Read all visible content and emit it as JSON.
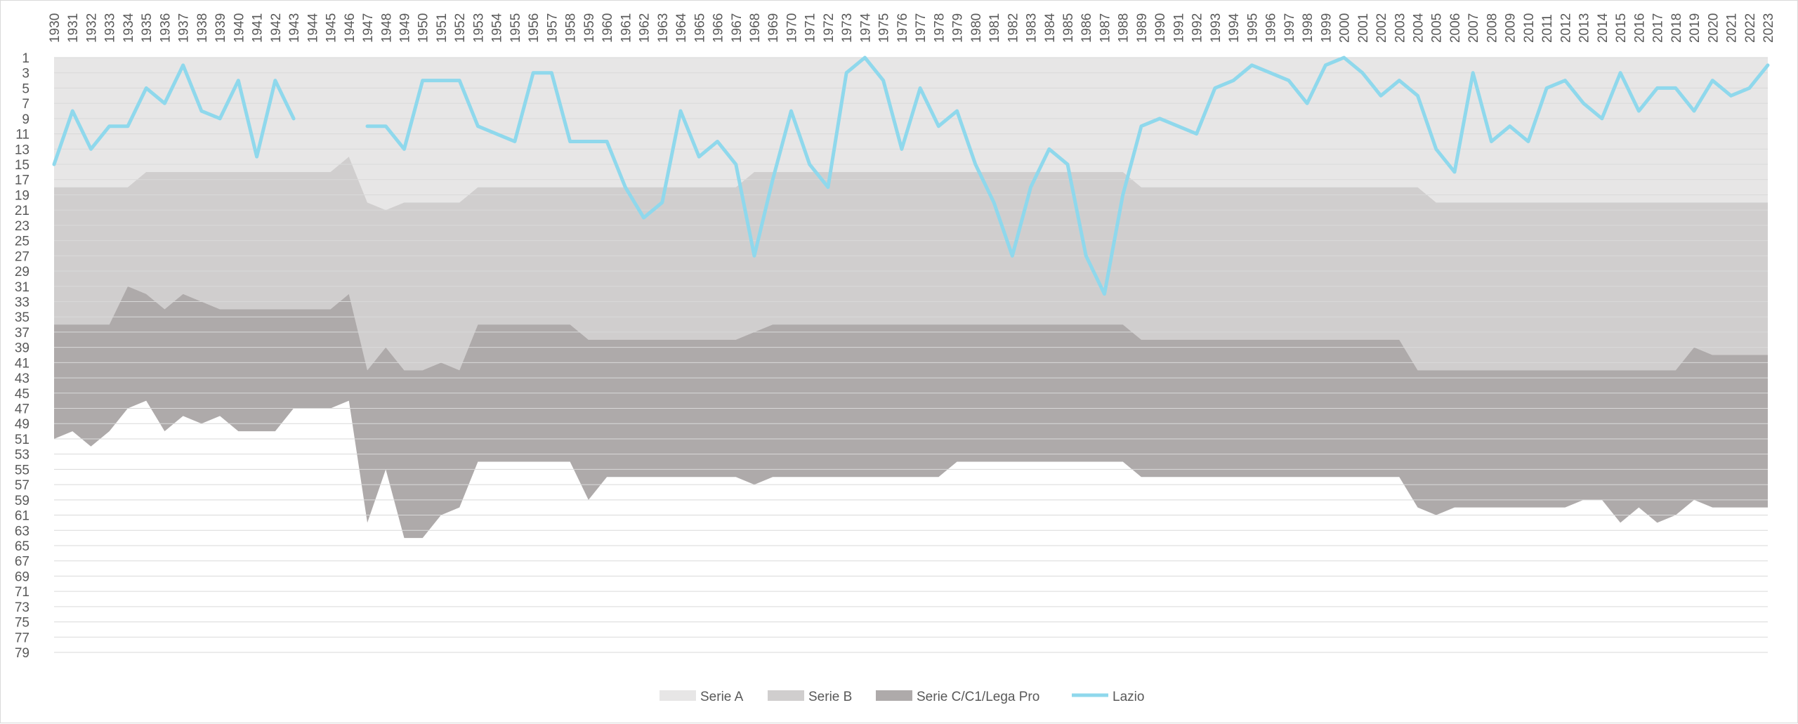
{
  "chart_data": {
    "type": "area",
    "title": "",
    "xlabel": "",
    "ylabel": "",
    "y_reversed": true,
    "ylim": [
      1,
      79
    ],
    "y_ticks": [
      1,
      3,
      5,
      7,
      9,
      11,
      13,
      15,
      17,
      19,
      21,
      23,
      25,
      27,
      29,
      31,
      33,
      35,
      37,
      39,
      41,
      43,
      45,
      47,
      49,
      51,
      53,
      55,
      57,
      59,
      61,
      63,
      65,
      67,
      69,
      71,
      73,
      75,
      77,
      79
    ],
    "grid": "horizontal",
    "legend_placement": "bottom",
    "categories": [
      "1930",
      "1931",
      "1932",
      "1933",
      "1934",
      "1935",
      "1936",
      "1937",
      "1938",
      "1939",
      "1940",
      "1941",
      "1942",
      "1943",
      "1944",
      "1945",
      "1946",
      "1947",
      "1948",
      "1949",
      "1950",
      "1951",
      "1952",
      "1953",
      "1954",
      "1955",
      "1956",
      "1957",
      "1958",
      "1959",
      "1960",
      "1961",
      "1962",
      "1963",
      "1964",
      "1965",
      "1966",
      "1967",
      "1968",
      "1969",
      "1970",
      "1971",
      "1972",
      "1973",
      "1974",
      "1975",
      "1976",
      "1977",
      "1978",
      "1979",
      "1980",
      "1981",
      "1982",
      "1983",
      "1984",
      "1985",
      "1986",
      "1987",
      "1988",
      "1989",
      "1990",
      "1991",
      "1992",
      "1993",
      "1994",
      "1995",
      "1996",
      "1997",
      "1998",
      "1999",
      "2000",
      "2001",
      "2002",
      "2003",
      "2004",
      "2005",
      "2006",
      "2007",
      "2008",
      "2009",
      "2010",
      "2011",
      "2012",
      "2013",
      "2014",
      "2015",
      "2016",
      "2017",
      "2018",
      "2019",
      "2020",
      "2021",
      "2022",
      "2023"
    ],
    "series": [
      {
        "name": "Serie A",
        "kind": "area",
        "color": "#e7e6e6",
        "values": [
          18,
          18,
          18,
          18,
          18,
          16,
          16,
          16,
          16,
          16,
          16,
          16,
          16,
          16,
          16,
          16,
          14,
          20,
          21,
          20,
          20,
          20,
          20,
          18,
          18,
          18,
          18,
          18,
          18,
          18,
          18,
          18,
          18,
          18,
          18,
          18,
          18,
          18,
          16,
          16,
          16,
          16,
          16,
          16,
          16,
          16,
          16,
          16,
          16,
          16,
          16,
          16,
          16,
          16,
          16,
          16,
          16,
          16,
          16,
          18,
          18,
          18,
          18,
          18,
          18,
          18,
          18,
          18,
          18,
          18,
          18,
          18,
          18,
          18,
          18,
          20,
          20,
          20,
          20,
          20,
          20,
          20,
          20,
          20,
          20,
          20,
          20,
          20,
          20,
          20,
          20,
          20,
          20,
          20
        ]
      },
      {
        "name": "Serie B",
        "kind": "area",
        "color": "#d0cece",
        "values": [
          36,
          36,
          36,
          36,
          31,
          32,
          34,
          32,
          33,
          34,
          34,
          34,
          34,
          34,
          34,
          34,
          32,
          42,
          39,
          42,
          42,
          41,
          42,
          36,
          36,
          36,
          36,
          36,
          36,
          38,
          38,
          38,
          38,
          38,
          38,
          38,
          38,
          38,
          37,
          36,
          36,
          36,
          36,
          36,
          36,
          36,
          36,
          36,
          36,
          36,
          36,
          36,
          36,
          36,
          36,
          36,
          36,
          36,
          36,
          38,
          38,
          38,
          38,
          38,
          38,
          38,
          38,
          38,
          38,
          38,
          38,
          38,
          38,
          38,
          42,
          42,
          42,
          42,
          42,
          42,
          42,
          42,
          42,
          42,
          42,
          42,
          42,
          42,
          42,
          39,
          40,
          40,
          40,
          40
        ]
      },
      {
        "name": "Serie C/C1/Lega Pro",
        "kind": "area",
        "color": "#aeaaaa",
        "values": [
          51,
          50,
          52,
          50,
          47,
          46,
          50,
          48,
          49,
          48,
          50,
          50,
          50,
          47,
          47,
          47,
          46,
          62,
          55,
          64,
          64,
          61,
          60,
          54,
          54,
          54,
          54,
          54,
          54,
          59,
          56,
          56,
          56,
          56,
          56,
          56,
          56,
          56,
          57,
          56,
          56,
          56,
          56,
          56,
          56,
          56,
          56,
          56,
          56,
          54,
          54,
          54,
          54,
          54,
          54,
          54,
          54,
          54,
          54,
          56,
          56,
          56,
          56,
          56,
          56,
          56,
          56,
          56,
          56,
          56,
          56,
          56,
          56,
          56,
          60,
          61,
          60,
          60,
          60,
          60,
          60,
          60,
          60,
          59,
          59,
          62,
          60,
          62,
          61,
          59,
          60,
          60,
          60,
          60
        ]
      },
      {
        "name": "Lazio",
        "kind": "line",
        "color": "#8fd8ec",
        "values": [
          15,
          8,
          13,
          10,
          10,
          5,
          7,
          2,
          8,
          9,
          4,
          14,
          4,
          9,
          null,
          null,
          null,
          10,
          10,
          13,
          4,
          4,
          4,
          10,
          11,
          12,
          3,
          3,
          12,
          12,
          12,
          18,
          22,
          20,
          8,
          14,
          12,
          15,
          27,
          17,
          8,
          15,
          18,
          3,
          1,
          4,
          13,
          5,
          10,
          8,
          15,
          20,
          27,
          18,
          13,
          15,
          27,
          32,
          19,
          10,
          9,
          10,
          11,
          5,
          4,
          2,
          3,
          4,
          7,
          2,
          1,
          3,
          6,
          4,
          6,
          13,
          16,
          3,
          12,
          10,
          12,
          5,
          4,
          7,
          9,
          3,
          8,
          5,
          5,
          8,
          4,
          6,
          5,
          2
        ]
      }
    ]
  }
}
